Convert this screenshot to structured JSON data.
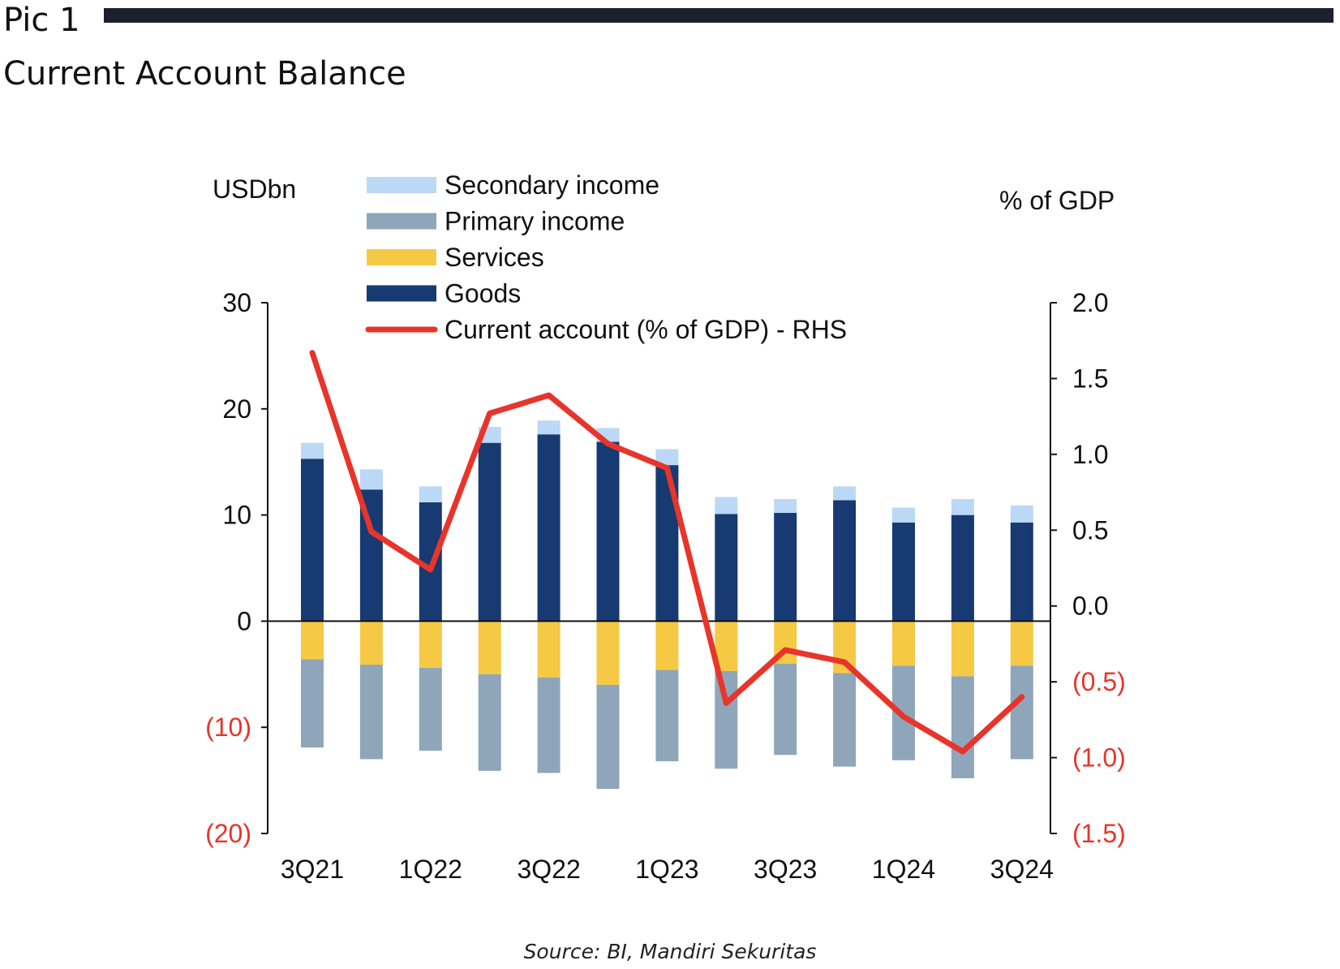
{
  "header": {
    "pic_label": "Pic 1",
    "title": "Current Account Balance"
  },
  "source": "Source: BI, Mandiri Sekuritas",
  "chart_data": {
    "type": "bar",
    "stacked": true,
    "combo_line": true,
    "left_axis_label": "USDbn",
    "right_axis_label": "% of GDP",
    "left_ylim": [
      -20,
      30
    ],
    "left_ticks": [
      {
        "value": 30,
        "label": "30"
      },
      {
        "value": 20,
        "label": "20"
      },
      {
        "value": 10,
        "label": "10"
      },
      {
        "value": 0,
        "label": "0"
      },
      {
        "value": -10,
        "label": "(10)"
      },
      {
        "value": -20,
        "label": "(20)"
      }
    ],
    "right_ylim": [
      -1.5,
      2.0
    ],
    "right_ticks": [
      {
        "value": 2.0,
        "label": "2.0"
      },
      {
        "value": 1.5,
        "label": "1.5"
      },
      {
        "value": 1.0,
        "label": "1.0"
      },
      {
        "value": 0.5,
        "label": "0.5"
      },
      {
        "value": 0.0,
        "label": "0.0"
      },
      {
        "value": -0.5,
        "label": "(0.5)"
      },
      {
        "value": -1.0,
        "label": "(1.0)"
      },
      {
        "value": -1.5,
        "label": "(1.5)"
      }
    ],
    "categories": [
      "3Q21",
      "4Q21",
      "1Q22",
      "2Q22",
      "3Q22",
      "4Q22",
      "1Q23",
      "2Q23",
      "3Q23",
      "4Q23",
      "1Q24",
      "2Q24",
      "3Q24"
    ],
    "x_tick_labels": [
      "3Q21",
      "",
      "1Q22",
      "",
      "3Q22",
      "",
      "1Q23",
      "",
      "3Q23",
      "",
      "1Q24",
      "",
      "3Q24"
    ],
    "legend_placement": "top-left",
    "series": [
      {
        "name": "Secondary income",
        "kind": "bar",
        "color": "#bcd8f7",
        "values": [
          1.5,
          1.9,
          1.5,
          1.5,
          1.3,
          1.3,
          1.5,
          1.6,
          1.3,
          1.3,
          1.4,
          1.5,
          1.6
        ]
      },
      {
        "name": "Primary income",
        "kind": "bar",
        "color": "#8fa5ba",
        "values": [
          -8.3,
          -8.9,
          -7.8,
          -9.1,
          -9.0,
          -9.8,
          -8.6,
          -9.2,
          -8.6,
          -8.8,
          -8.9,
          -9.6,
          -8.8
        ]
      },
      {
        "name": "Services",
        "kind": "bar",
        "color": "#f6c945",
        "values": [
          -3.6,
          -4.1,
          -4.4,
          -5.0,
          -5.3,
          -6.0,
          -4.6,
          -4.7,
          -4.0,
          -4.9,
          -4.2,
          -5.2,
          -4.2
        ]
      },
      {
        "name": "Goods",
        "kind": "bar",
        "color": "#183a72",
        "values": [
          15.3,
          12.4,
          11.2,
          16.8,
          17.6,
          16.9,
          14.7,
          10.1,
          10.2,
          11.4,
          9.3,
          10.0,
          9.3
        ]
      },
      {
        "name": "Current account (% of GDP) - RHS",
        "kind": "line",
        "axis": "right",
        "color": "#e8342a",
        "values": [
          1.67,
          0.49,
          0.24,
          1.27,
          1.39,
          1.07,
          0.91,
          -0.64,
          -0.29,
          -0.37,
          -0.73,
          -0.96,
          -0.6
        ]
      }
    ]
  }
}
